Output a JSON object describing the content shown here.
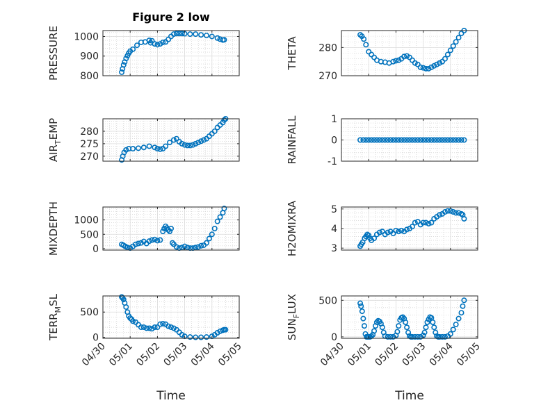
{
  "chart_data": [
    {
      "type": "scatter",
      "title": "Figure 2 low",
      "ylabel": "PRESSURE",
      "xlabel": "",
      "x_ticks": [
        "04/30",
        "05/01",
        "05/02",
        "05/03",
        "05/04",
        "05/05"
      ],
      "xlim": [
        0,
        5
      ],
      "ylim": [
        800,
        1030
      ],
      "yticks": [
        800,
        900,
        1000
      ],
      "grid": true,
      "color": "#0072BD",
      "series": [
        {
          "x": [
            0.69,
            0.72,
            0.76,
            0.8,
            0.85,
            0.9,
            0.95,
            1.0,
            1.1,
            1.25,
            1.4,
            1.55,
            1.7,
            1.75,
            1.8,
            1.9,
            2.0,
            2.1,
            2.2,
            2.3,
            2.4,
            2.5,
            2.6,
            2.7,
            2.8,
            2.9,
            3.0,
            3.2,
            3.4,
            3.6,
            3.8,
            4.0,
            4.2,
            4.3,
            4.4,
            4.45
          ],
          "y": [
            818,
            835,
            855,
            870,
            888,
            902,
            915,
            925,
            935,
            955,
            970,
            972,
            980,
            968,
            978,
            962,
            958,
            962,
            970,
            972,
            985,
            1000,
            1012,
            1015,
            1015,
            1015,
            1014,
            1012,
            1012,
            1008,
            1005,
            1000,
            992,
            986,
            982,
            983
          ]
        }
      ]
    },
    {
      "type": "scatter",
      "title": "",
      "ylabel": "THETA",
      "xlabel": "",
      "x_ticks": [
        "04/30",
        "05/01",
        "05/02",
        "05/03",
        "05/04",
        "05/05"
      ],
      "xlim": [
        0,
        5
      ],
      "ylim": [
        270,
        286
      ],
      "yticks": [
        270,
        280
      ],
      "grid": true,
      "color": "#0072BD",
      "series": [
        {
          "x": [
            0.69,
            0.75,
            0.82,
            0.9,
            1.0,
            1.1,
            1.2,
            1.3,
            1.45,
            1.6,
            1.75,
            1.9,
            2.0,
            2.1,
            2.2,
            2.3,
            2.4,
            2.5,
            2.6,
            2.7,
            2.8,
            2.9,
            3.0,
            3.1,
            3.2,
            3.3,
            3.4,
            3.5,
            3.6,
            3.7,
            3.8,
            3.9,
            4.0,
            4.1,
            4.2,
            4.3,
            4.4,
            4.5
          ],
          "y": [
            284.5,
            284,
            283,
            281,
            278.5,
            277.5,
            276.5,
            275.5,
            275,
            274.8,
            274.5,
            275,
            275.3,
            275.5,
            276,
            276.8,
            277,
            276.5,
            275.5,
            274.5,
            274,
            273,
            272.8,
            272.5,
            272.5,
            273,
            273.5,
            274,
            274.5,
            275,
            276,
            277.5,
            279,
            280.5,
            282,
            283.5,
            285,
            286
          ]
        }
      ]
    },
    {
      "type": "scatter",
      "title": "",
      "ylabel": "AIR_TEMP",
      "ylabel_main": "AIR",
      "ylabel_sub": "T",
      "ylabel_rest": "EMP",
      "xlabel": "",
      "x_ticks": [
        "04/30",
        "05/01",
        "05/02",
        "05/03",
        "05/04",
        "05/05"
      ],
      "xlim": [
        0,
        5
      ],
      "ylim": [
        268,
        285
      ],
      "yticks": [
        270,
        275,
        280
      ],
      "grid": true,
      "color": "#0072BD",
      "series": [
        {
          "x": [
            0.69,
            0.73,
            0.78,
            0.85,
            0.95,
            1.1,
            1.3,
            1.5,
            1.7,
            1.9,
            2.0,
            2.1,
            2.2,
            2.3,
            2.45,
            2.6,
            2.7,
            2.8,
            2.9,
            3.0,
            3.1,
            3.2,
            3.3,
            3.4,
            3.5,
            3.6,
            3.7,
            3.8,
            3.9,
            4.0,
            4.1,
            4.2,
            4.3,
            4.4,
            4.45,
            4.5
          ],
          "y": [
            268.5,
            270,
            271.5,
            272.5,
            273,
            273,
            273.2,
            273.5,
            274,
            273.5,
            273,
            272.8,
            273,
            274,
            275.5,
            276.5,
            277,
            275.8,
            275,
            274.5,
            274.3,
            274.3,
            274.5,
            275,
            275.5,
            276,
            276.5,
            277,
            278,
            279,
            280,
            281.5,
            282.5,
            283.5,
            284.5,
            285
          ]
        }
      ]
    },
    {
      "type": "scatter",
      "title": "",
      "ylabel": "RAINFALL",
      "xlabel": "",
      "x_ticks": [
        "04/30",
        "05/01",
        "05/02",
        "05/03",
        "05/04",
        "05/05"
      ],
      "xlim": [
        0,
        5
      ],
      "ylim": [
        -1,
        1
      ],
      "yticks": [
        -1,
        0,
        1
      ],
      "grid": true,
      "color": "#0072BD",
      "series": [
        {
          "x": [
            0.69,
            0.8,
            0.9,
            1.0,
            1.1,
            1.2,
            1.3,
            1.4,
            1.5,
            1.6,
            1.7,
            1.8,
            1.9,
            2.0,
            2.1,
            2.2,
            2.3,
            2.4,
            2.5,
            2.6,
            2.7,
            2.8,
            2.9,
            3.0,
            3.1,
            3.2,
            3.3,
            3.4,
            3.5,
            3.6,
            3.7,
            3.8,
            3.9,
            4.0,
            4.1,
            4.2,
            4.3,
            4.4,
            4.5
          ],
          "y": [
            0,
            0,
            0,
            0,
            0,
            0,
            0,
            0,
            0,
            0,
            0,
            0,
            0,
            0,
            0,
            0,
            0,
            0,
            0,
            0,
            0,
            0,
            0,
            0,
            0,
            0,
            0,
            0,
            0,
            0,
            0,
            0,
            0,
            0,
            0,
            0,
            0,
            0,
            0
          ]
        }
      ]
    },
    {
      "type": "scatter",
      "title": "",
      "ylabel": "MIXDEPTH",
      "xlabel": "",
      "x_ticks": [
        "04/30",
        "05/01",
        "05/02",
        "05/03",
        "05/04",
        "05/05"
      ],
      "xlim": [
        0,
        5
      ],
      "ylim": [
        -50,
        1450
      ],
      "yticks": [
        0,
        500,
        1000
      ],
      "grid": true,
      "color": "#0072BD",
      "series": [
        {
          "x": [
            0.69,
            0.75,
            0.82,
            0.9,
            1.0,
            1.1,
            1.2,
            1.3,
            1.4,
            1.5,
            1.6,
            1.7,
            1.8,
            1.9,
            2.0,
            2.1,
            2.2,
            2.25,
            2.3,
            2.35,
            2.4,
            2.45,
            2.5,
            2.55,
            2.6,
            2.7,
            2.8,
            2.9,
            3.0,
            3.1,
            3.2,
            3.3,
            3.4,
            3.5,
            3.6,
            3.7,
            3.8,
            3.9,
            4.0,
            4.1,
            4.2,
            4.3,
            4.4,
            4.45
          ],
          "y": [
            150,
            120,
            80,
            40,
            20,
            80,
            150,
            180,
            200,
            250,
            180,
            260,
            300,
            320,
            280,
            300,
            600,
            700,
            780,
            720,
            650,
            600,
            700,
            200,
            150,
            60,
            20,
            40,
            80,
            40,
            20,
            20,
            40,
            60,
            100,
            120,
            200,
            350,
            500,
            700,
            950,
            1100,
            1250,
            1400
          ]
        }
      ]
    },
    {
      "type": "scatter",
      "title": "",
      "ylabel": "H2OMIXRA",
      "xlabel": "",
      "x_ticks": [
        "04/30",
        "05/01",
        "05/02",
        "05/03",
        "05/04",
        "05/05"
      ],
      "xlim": [
        0,
        5
      ],
      "ylim": [
        2.9,
        5.1
      ],
      "yticks": [
        3,
        4,
        5
      ],
      "grid": true,
      "color": "#0072BD",
      "series": [
        {
          "x": [
            0.69,
            0.73,
            0.78,
            0.85,
            0.9,
            0.95,
            1.0,
            1.05,
            1.1,
            1.2,
            1.3,
            1.4,
            1.5,
            1.6,
            1.7,
            1.8,
            1.9,
            2.0,
            2.1,
            2.2,
            2.3,
            2.4,
            2.5,
            2.6,
            2.7,
            2.8,
            2.9,
            3.0,
            3.1,
            3.2,
            3.3,
            3.4,
            3.5,
            3.6,
            3.7,
            3.8,
            3.9,
            4.0,
            4.1,
            4.2,
            4.3,
            4.4,
            4.45,
            4.5
          ],
          "y": [
            3.1,
            3.2,
            3.3,
            3.5,
            3.6,
            3.7,
            3.65,
            3.5,
            3.4,
            3.5,
            3.7,
            3.8,
            3.85,
            3.7,
            3.8,
            3.85,
            3.75,
            3.9,
            3.85,
            3.9,
            3.85,
            3.95,
            4.0,
            4.1,
            4.3,
            4.35,
            4.2,
            4.3,
            4.3,
            4.25,
            4.3,
            4.5,
            4.6,
            4.7,
            4.75,
            4.85,
            4.9,
            4.9,
            4.85,
            4.8,
            4.8,
            4.75,
            4.7,
            4.5
          ]
        }
      ]
    },
    {
      "type": "scatter",
      "title": "",
      "ylabel": "TERR_MSL",
      "ylabel_main": "TERR",
      "ylabel_sub": "M",
      "ylabel_rest": "SL",
      "xlabel": "Time",
      "x_ticks": [
        "04/30",
        "05/01",
        "05/02",
        "05/03",
        "05/04",
        "05/05"
      ],
      "xlim": [
        0,
        5
      ],
      "ylim": [
        -20,
        820
      ],
      "yticks": [
        0,
        500
      ],
      "grid": true,
      "color": "#0072BD",
      "series": [
        {
          "x": [
            0.69,
            0.72,
            0.76,
            0.8,
            0.85,
            0.9,
            0.95,
            1.0,
            1.05,
            1.1,
            1.2,
            1.3,
            1.4,
            1.5,
            1.6,
            1.7,
            1.8,
            1.9,
            2.0,
            2.1,
            2.2,
            2.3,
            2.4,
            2.5,
            2.6,
            2.7,
            2.8,
            2.9,
            3.0,
            3.2,
            3.4,
            3.6,
            3.8,
            4.0,
            4.1,
            4.2,
            4.3,
            4.4,
            4.45,
            4.5
          ],
          "y": [
            800,
            780,
            750,
            680,
            600,
            500,
            420,
            380,
            360,
            320,
            300,
            250,
            200,
            200,
            180,
            180,
            170,
            200,
            200,
            260,
            270,
            260,
            220,
            200,
            180,
            150,
            100,
            50,
            20,
            5,
            0,
            0,
            5,
            20,
            50,
            90,
            120,
            140,
            150,
            150
          ]
        }
      ]
    },
    {
      "type": "scatter",
      "title": "",
      "ylabel": "SUN_FLUX",
      "ylabel_main": "SUN",
      "ylabel_sub": "F",
      "ylabel_rest": "LUX",
      "xlabel": "Time",
      "x_ticks": [
        "04/30",
        "05/01",
        "05/02",
        "05/03",
        "05/04",
        "05/05"
      ],
      "xlim": [
        0,
        5
      ],
      "ylim": [
        -20,
        560
      ],
      "yticks": [
        0,
        500
      ],
      "grid": true,
      "color": "#0072BD",
      "series": [
        {
          "x": [
            0.69,
            0.72,
            0.76,
            0.8,
            0.84,
            0.88,
            0.92,
            0.96,
            1.0,
            1.05,
            1.1,
            1.15,
            1.2,
            1.25,
            1.3,
            1.35,
            1.4,
            1.45,
            1.5,
            1.55,
            1.6,
            1.7,
            1.8,
            1.9,
            2.0,
            2.05,
            2.1,
            2.15,
            2.2,
            2.25,
            2.3,
            2.35,
            2.4,
            2.45,
            2.5,
            2.55,
            2.6,
            2.7,
            2.8,
            2.9,
            3.0,
            3.05,
            3.1,
            3.15,
            3.2,
            3.25,
            3.3,
            3.35,
            3.4,
            3.45,
            3.5,
            3.55,
            3.6,
            3.7,
            3.8,
            3.9,
            4.0,
            4.1,
            4.2,
            4.3,
            4.4,
            4.45,
            4.5
          ],
          "y": [
            460,
            420,
            350,
            250,
            150,
            40,
            0,
            0,
            0,
            0,
            10,
            30,
            80,
            150,
            200,
            220,
            210,
            180,
            130,
            60,
            10,
            0,
            0,
            0,
            20,
            70,
            150,
            230,
            260,
            270,
            250,
            200,
            130,
            60,
            10,
            0,
            0,
            0,
            0,
            0,
            20,
            60,
            130,
            200,
            240,
            270,
            260,
            200,
            130,
            60,
            10,
            0,
            0,
            0,
            0,
            10,
            40,
            100,
            170,
            250,
            330,
            420,
            500
          ]
        }
      ]
    }
  ]
}
